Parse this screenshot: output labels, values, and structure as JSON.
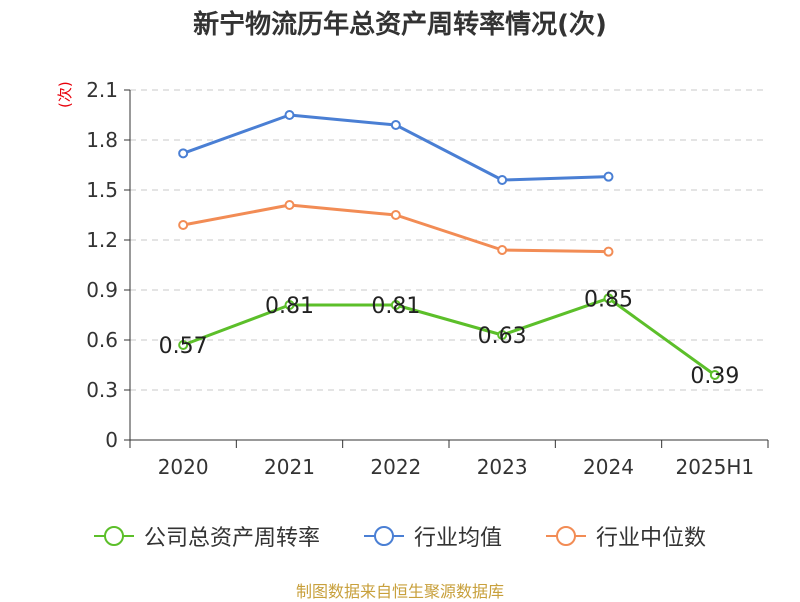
{
  "chart_data": {
    "type": "line",
    "title": "新宁物流历年总资产周转率情况(次)",
    "ylabel": "(次)",
    "categories": [
      "2020",
      "2021",
      "2022",
      "2023",
      "2024",
      "2025H1"
    ],
    "y_ticks": [
      "0",
      "0.3",
      "0.6",
      "0.9",
      "1.2",
      "1.5",
      "1.8",
      "2.1"
    ],
    "ylim": [
      0,
      2.1
    ],
    "grid": true,
    "legend_position": "bottom",
    "series": [
      {
        "name": "公司总资产周转率",
        "color": "#5cbf2a",
        "values": [
          0.57,
          0.81,
          0.81,
          0.63,
          0.85,
          0.39
        ],
        "show_labels": true
      },
      {
        "name": "行业均值",
        "color": "#4a7fd4",
        "values": [
          1.72,
          1.95,
          1.89,
          1.56,
          1.58,
          null
        ],
        "show_labels": false
      },
      {
        "name": "行业中位数",
        "color": "#f28c55",
        "values": [
          1.29,
          1.41,
          1.35,
          1.14,
          1.13,
          null
        ],
        "show_labels": false
      }
    ]
  },
  "source": "制图数据来自恒生聚源数据库"
}
